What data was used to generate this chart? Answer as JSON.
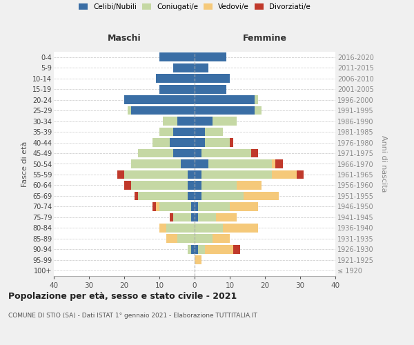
{
  "age_groups": [
    "100+",
    "95-99",
    "90-94",
    "85-89",
    "80-84",
    "75-79",
    "70-74",
    "65-69",
    "60-64",
    "55-59",
    "50-54",
    "45-49",
    "40-44",
    "35-39",
    "30-34",
    "25-29",
    "20-24",
    "15-19",
    "10-14",
    "5-9",
    "0-4"
  ],
  "birth_years": [
    "≤ 1920",
    "1921-1925",
    "1926-1930",
    "1931-1935",
    "1936-1940",
    "1941-1945",
    "1946-1950",
    "1951-1955",
    "1956-1960",
    "1961-1965",
    "1966-1970",
    "1971-1975",
    "1976-1980",
    "1981-1985",
    "1986-1990",
    "1991-1995",
    "1996-2000",
    "2001-2005",
    "2006-2010",
    "2011-2015",
    "2016-2020"
  ],
  "maschi": {
    "celibi": [
      0,
      0,
      1,
      0,
      0,
      1,
      1,
      2,
      2,
      2,
      4,
      6,
      7,
      6,
      5,
      18,
      20,
      10,
      11,
      6,
      10
    ],
    "coniugati": [
      0,
      0,
      1,
      5,
      8,
      5,
      9,
      14,
      16,
      18,
      14,
      10,
      5,
      4,
      4,
      1,
      0,
      0,
      0,
      0,
      0
    ],
    "vedovi": [
      0,
      0,
      0,
      3,
      2,
      0,
      1,
      0,
      0,
      0,
      0,
      0,
      0,
      0,
      0,
      0,
      0,
      0,
      0,
      0,
      0
    ],
    "divorziati": [
      0,
      0,
      0,
      0,
      0,
      1,
      1,
      1,
      2,
      2,
      0,
      0,
      0,
      0,
      0,
      0,
      0,
      0,
      0,
      0,
      0
    ]
  },
  "femmine": {
    "nubili": [
      0,
      0,
      1,
      0,
      0,
      1,
      1,
      2,
      2,
      2,
      4,
      2,
      3,
      3,
      5,
      17,
      17,
      9,
      10,
      4,
      9
    ],
    "coniugate": [
      0,
      0,
      2,
      5,
      8,
      5,
      9,
      12,
      10,
      20,
      18,
      14,
      7,
      5,
      7,
      2,
      1,
      0,
      0,
      0,
      0
    ],
    "vedove": [
      0,
      2,
      8,
      5,
      10,
      6,
      8,
      10,
      7,
      7,
      1,
      0,
      0,
      0,
      0,
      0,
      0,
      0,
      0,
      0,
      0
    ],
    "divorziate": [
      0,
      0,
      2,
      0,
      0,
      0,
      0,
      0,
      0,
      2,
      2,
      2,
      1,
      0,
      0,
      0,
      0,
      0,
      0,
      0,
      0
    ]
  },
  "colors": {
    "celibi": "#3a6ea5",
    "coniugati": "#c5d8a4",
    "vedovi": "#f5c97a",
    "divorziati": "#c0392b"
  },
  "xlim": 40,
  "title": "Popolazione per età, sesso e stato civile - 2021",
  "subtitle": "COMUNE DI STIO (SA) - Dati ISTAT 1° gennaio 2021 - Elaborazione TUTTITALIA.IT",
  "ylabel_left": "Fasce di età",
  "ylabel_right": "Anni di nascita",
  "xlabel_maschi": "Maschi",
  "xlabel_femmine": "Femmine",
  "bg_color": "#f0f0f0",
  "plot_bg_color": "#ffffff"
}
